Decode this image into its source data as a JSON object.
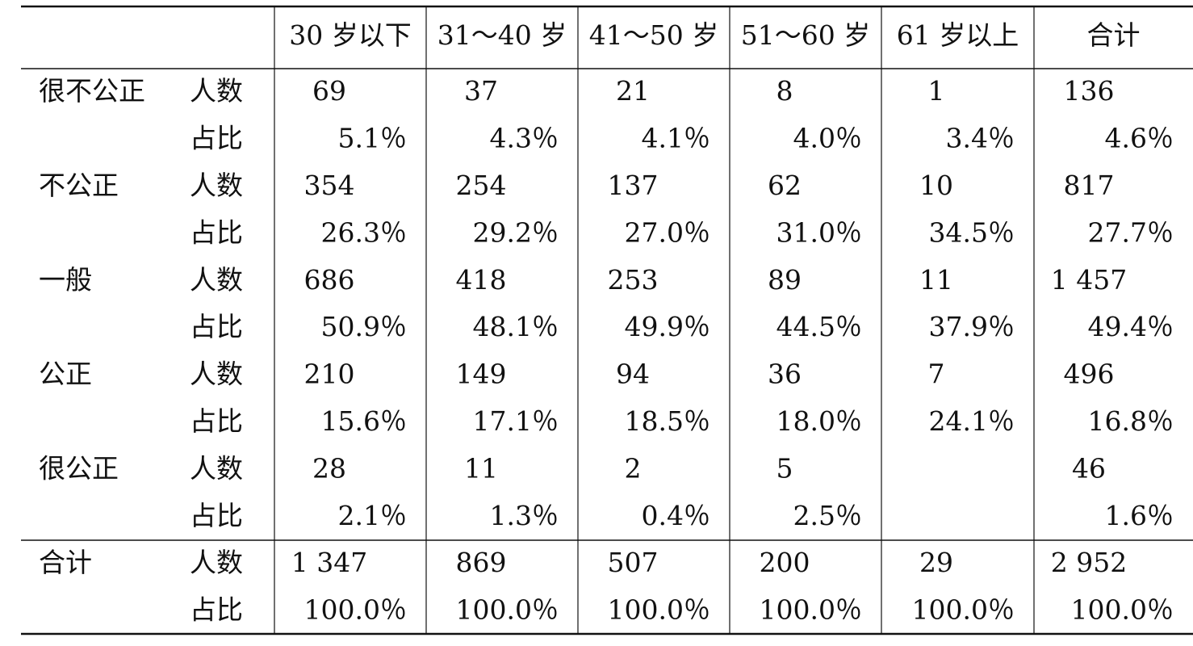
{
  "table": {
    "columns": [
      "30 岁以下",
      "31～40 岁",
      "41～50 岁",
      "51～60 岁",
      "61 岁以上",
      "合计"
    ],
    "groups": [
      {
        "label": "很不公正",
        "rows": [
          {
            "measure": "人数",
            "cells": [
              "69",
              "37",
              "21",
              "8",
              "1",
              "136"
            ]
          },
          {
            "measure": "占比",
            "cells": [
              "5.1％",
              "4.3％",
              "4.1％",
              "4.0％",
              "3.4％",
              "4.6％"
            ]
          }
        ]
      },
      {
        "label": "不公正",
        "rows": [
          {
            "measure": "人数",
            "cells": [
              "354",
              "254",
              "137",
              "62",
              "10",
              "817"
            ]
          },
          {
            "measure": "占比",
            "cells": [
              "26.3％",
              "29.2％",
              "27.0％",
              "31.0％",
              "34.5％",
              "27.7％"
            ]
          }
        ]
      },
      {
        "label": "一般",
        "rows": [
          {
            "measure": "人数",
            "cells": [
              "686",
              "418",
              "253",
              "89",
              "11",
              "1 457"
            ]
          },
          {
            "measure": "占比",
            "cells": [
              "50.9％",
              "48.1％",
              "49.9％",
              "44.5％",
              "37.9％",
              "49.4％"
            ]
          }
        ]
      },
      {
        "label": "公正",
        "rows": [
          {
            "measure": "人数",
            "cells": [
              "210",
              "149",
              "94",
              "36",
              "7",
              "496"
            ]
          },
          {
            "measure": "占比",
            "cells": [
              "15.6％",
              "17.1％",
              "18.5％",
              "18.0％",
              "24.1％",
              "16.8％"
            ]
          }
        ]
      },
      {
        "label": "很公正",
        "rows": [
          {
            "measure": "人数",
            "cells": [
              "28",
              "11",
              "2",
              "5",
              null,
              "46"
            ]
          },
          {
            "measure": "占比",
            "cells": [
              "2.1％",
              "1.3％",
              "0.4％",
              "2.5％",
              null,
              "1.6％"
            ]
          }
        ]
      },
      {
        "label": "合计",
        "rows": [
          {
            "measure": "人数",
            "cells": [
              "1 347",
              "869",
              "507",
              "200",
              "29",
              "2 952"
            ]
          },
          {
            "measure": "占比",
            "cells": [
              "100.0％",
              "100.0％",
              "100.0％",
              "100.0％",
              "100.0％",
              "100.0％"
            ]
          }
        ]
      }
    ]
  }
}
